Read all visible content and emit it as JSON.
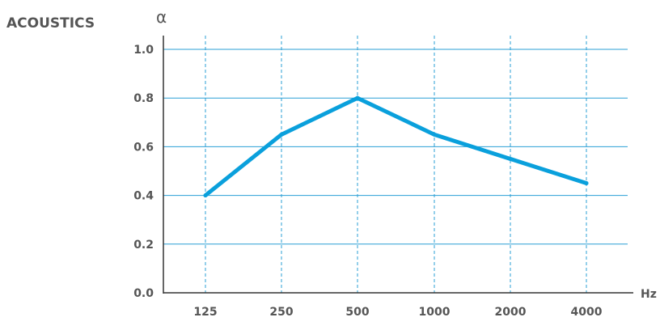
{
  "section_title": "ACOUSTICS",
  "chart_data": {
    "type": "line",
    "ylabel": "α",
    "xlabel": "Hz",
    "categories": [
      "125",
      "250",
      "500",
      "1000",
      "2000",
      "4000"
    ],
    "series": [
      {
        "values": [
          0.4,
          0.65,
          0.8,
          0.65,
          0.55,
          0.45
        ]
      }
    ],
    "ylim": [
      0,
      1.0
    ],
    "y_ticks": [
      "0.0",
      "0.2",
      "0.4",
      "0.6",
      "0.8",
      "1.0"
    ],
    "grid": true,
    "colors": {
      "line": "#0aa0dc",
      "grid": "#2a9fd6",
      "axis": "#333333",
      "text": "#555555"
    }
  }
}
